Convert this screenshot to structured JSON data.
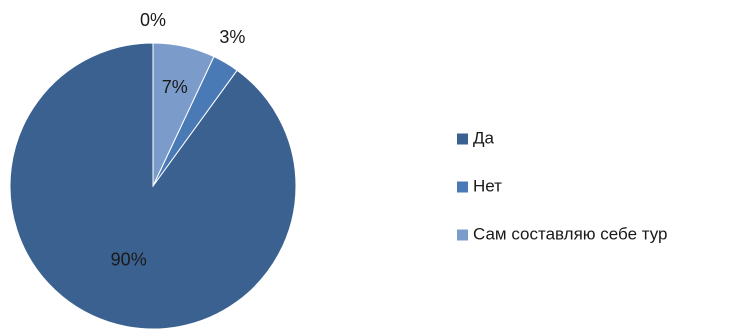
{
  "chart_data": {
    "type": "pie",
    "categories": [
      "Да",
      "Нет",
      "Сам составляю себе тур",
      ""
    ],
    "values": [
      90,
      3,
      7,
      0
    ],
    "labels": [
      "90%",
      "3%",
      "7%",
      "0%"
    ],
    "colors": [
      "#3a6190",
      "#4a7ab5",
      "#7b9ccb",
      "#a9bfdd"
    ],
    "legend": {
      "position": "right",
      "entries": [
        "Да",
        "Нет",
        "Сам составляю себе тур"
      ]
    },
    "title": ""
  }
}
